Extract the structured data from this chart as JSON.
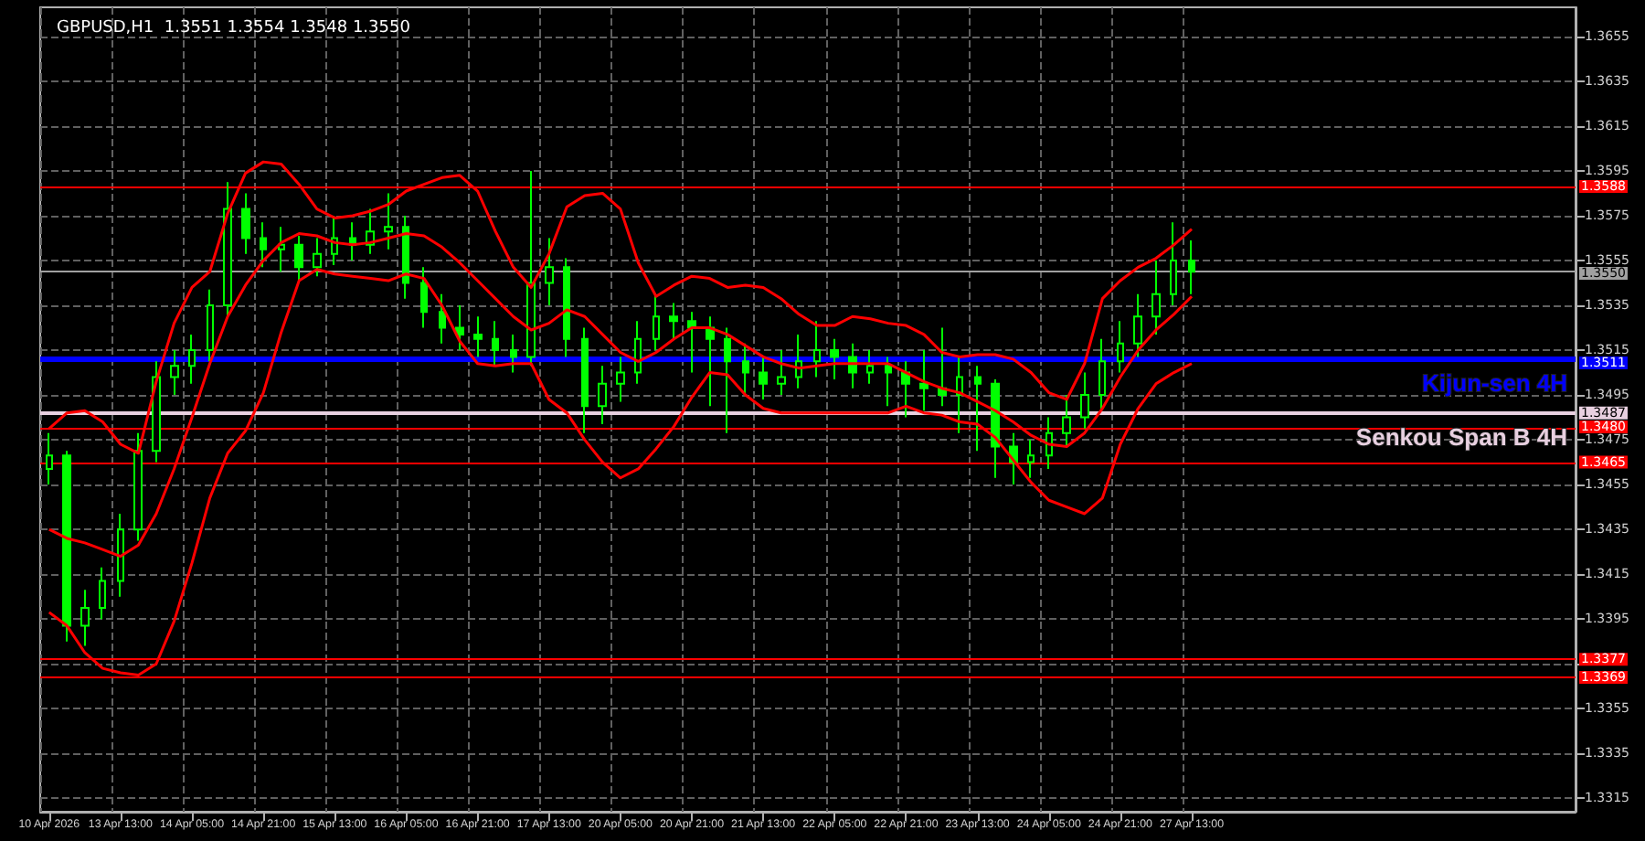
{
  "chart_data": {
    "type": "candlestick",
    "title": "GBPUSD,H1  1.3551 1.3554 1.3548 1.3550",
    "color": "#00ff00",
    "grid": true,
    "marker": "none",
    "line_style": "solid",
    "categories": [
      "10 Apr 2026",
      null,
      null,
      null,
      "13 Apr 13:00",
      null,
      null,
      null,
      "14 Apr 05:00",
      null,
      null,
      null,
      "14 Apr 21:00",
      null,
      null,
      null,
      "15 Apr 13:00",
      null,
      null,
      null,
      "16 Apr 05:00",
      null,
      null,
      null,
      "16 Apr 21:00",
      null,
      null,
      null,
      "17 Apr 13:00",
      null,
      null,
      null,
      "20 Apr 05:00",
      null,
      null,
      null,
      "20 Apr 21:00",
      null,
      null,
      null,
      "21 Apr 13:00",
      null,
      null,
      null,
      "22 Apr 05:00",
      null,
      null,
      null,
      "22 Apr 21:00",
      null,
      null,
      null,
      "23 Apr 13:00",
      null,
      null,
      null,
      "24 Apr 05:00",
      null,
      null,
      null,
      "24 Apr 21:00",
      null,
      null,
      null,
      "27 Apr 13:00",
      null,
      null,
      null,
      null,
      null,
      null,
      null,
      null,
      null,
      null,
      null,
      null,
      null,
      null,
      null,
      null,
      null,
      null,
      null,
      null,
      null
    ],
    "ohlc": [
      [
        1.3462,
        1.3478,
        1.3455,
        1.3468
      ],
      [
        1.3468,
        1.347,
        1.3385,
        1.3392
      ],
      [
        1.3392,
        1.3408,
        1.3383,
        1.34
      ],
      [
        1.34,
        1.3418,
        1.3395,
        1.3412
      ],
      [
        1.3412,
        1.3442,
        1.3405,
        1.3435
      ],
      [
        1.3435,
        1.3478,
        1.343,
        1.347
      ],
      [
        1.347,
        1.351,
        1.3465,
        1.3503
      ],
      [
        1.3503,
        1.3515,
        1.3495,
        1.3508
      ],
      [
        1.3508,
        1.3522,
        1.35,
        1.3515
      ],
      [
        1.3515,
        1.3542,
        1.351,
        1.3535
      ],
      [
        1.3535,
        1.359,
        1.353,
        1.3578
      ],
      [
        1.3578,
        1.3585,
        1.3558,
        1.3565
      ],
      [
        1.3565,
        1.3572,
        1.3552,
        1.356
      ],
      [
        1.356,
        1.357,
        1.355,
        1.3562
      ],
      [
        1.3562,
        1.3566,
        1.3545,
        1.3552
      ],
      [
        1.3552,
        1.3565,
        1.3548,
        1.3558
      ],
      [
        1.3558,
        1.3575,
        1.3553,
        1.3565
      ],
      [
        1.3565,
        1.3572,
        1.3555,
        1.3562
      ],
      [
        1.3562,
        1.3578,
        1.3558,
        1.3568
      ],
      [
        1.3568,
        1.3585,
        1.356,
        1.357
      ],
      [
        1.357,
        1.3575,
        1.3538,
        1.3545
      ],
      [
        1.3545,
        1.3552,
        1.3525,
        1.3532
      ],
      [
        1.3532,
        1.354,
        1.3518,
        1.3525
      ],
      [
        1.3525,
        1.3535,
        1.3515,
        1.3522
      ],
      [
        1.3522,
        1.353,
        1.3512,
        1.352
      ],
      [
        1.352,
        1.3528,
        1.3508,
        1.3515
      ],
      [
        1.3515,
        1.3522,
        1.3505,
        1.3512
      ],
      [
        1.3512,
        1.3595,
        1.3508,
        1.3545
      ],
      [
        1.3545,
        1.3565,
        1.3535,
        1.3552
      ],
      [
        1.3552,
        1.3556,
        1.3512,
        1.352
      ],
      [
        1.352,
        1.3525,
        1.3478,
        1.349
      ],
      [
        1.349,
        1.3508,
        1.3482,
        1.35
      ],
      [
        1.35,
        1.3512,
        1.3492,
        1.3505
      ],
      [
        1.3505,
        1.3528,
        1.35,
        1.352
      ],
      [
        1.352,
        1.354,
        1.3515,
        1.353
      ],
      [
        1.353,
        1.3536,
        1.352,
        1.3528
      ],
      [
        1.3528,
        1.3532,
        1.3505,
        1.3525
      ],
      [
        1.3525,
        1.353,
        1.349,
        1.352
      ],
      [
        1.352,
        1.3525,
        1.3478,
        1.351
      ],
      [
        1.351,
        1.3518,
        1.3495,
        1.3505
      ],
      [
        1.3505,
        1.3512,
        1.3493,
        1.35
      ],
      [
        1.35,
        1.3515,
        1.3495,
        1.3503
      ],
      [
        1.3503,
        1.3522,
        1.3498,
        1.351
      ],
      [
        1.351,
        1.3528,
        1.3503,
        1.3515
      ],
      [
        1.3515,
        1.352,
        1.3502,
        1.3512
      ],
      [
        1.3512,
        1.3518,
        1.3498,
        1.3505
      ],
      [
        1.3505,
        1.3515,
        1.35,
        1.3508
      ],
      [
        1.3508,
        1.3512,
        1.349,
        1.3505
      ],
      [
        1.3505,
        1.351,
        1.3485,
        1.35
      ],
      [
        1.35,
        1.3515,
        1.3488,
        1.3498
      ],
      [
        1.3498,
        1.3525,
        1.349,
        1.3495
      ],
      [
        1.3495,
        1.3512,
        1.3478,
        1.3503
      ],
      [
        1.3503,
        1.3508,
        1.347,
        1.35
      ],
      [
        1.35,
        1.3502,
        1.3458,
        1.3472
      ],
      [
        1.3472,
        1.3478,
        1.3455,
        1.3465
      ],
      [
        1.3465,
        1.3475,
        1.3458,
        1.3468
      ],
      [
        1.3468,
        1.3485,
        1.3462,
        1.3478
      ],
      [
        1.3478,
        1.3495,
        1.3472,
        1.3485
      ],
      [
        1.3485,
        1.3505,
        1.348,
        1.3495
      ],
      [
        1.3495,
        1.352,
        1.3488,
        1.351
      ],
      [
        1.351,
        1.3528,
        1.3505,
        1.3518
      ],
      [
        1.3518,
        1.354,
        1.3512,
        1.353
      ],
      [
        1.353,
        1.3555,
        1.3522,
        1.354
      ],
      [
        1.354,
        1.3572,
        1.3535,
        1.3555
      ],
      [
        1.3555,
        1.3564,
        1.354,
        1.355
      ],
      null,
      null,
      null,
      null,
      null,
      null,
      null,
      null,
      null,
      null,
      null,
      null,
      null,
      null,
      null,
      null,
      null,
      null,
      null,
      null,
      null
    ],
    "series": [
      {
        "type": "line",
        "color": "#ff0000",
        "values": [
          1.348,
          1.3487,
          1.3488,
          1.3483,
          1.3473,
          1.3469,
          1.3501,
          1.3527,
          1.3543,
          1.355,
          1.3576,
          1.3594,
          1.3599,
          1.3598,
          1.3589,
          1.3578,
          1.3574,
          1.3575,
          1.3577,
          1.358,
          1.3586,
          1.3589,
          1.3592,
          1.3593,
          1.3586,
          1.3568,
          1.3552,
          1.3543,
          1.3558,
          1.3579,
          1.3584,
          1.3585,
          1.3578,
          1.3554,
          1.3539,
          1.3544,
          1.3548,
          1.3547,
          1.3543,
          1.3544,
          1.3543,
          1.3538,
          1.3531,
          1.3526,
          1.3526,
          1.353,
          1.3529,
          1.3527,
          1.3526,
          1.3522,
          1.3514,
          1.3512,
          1.3513,
          1.3513,
          1.3511,
          1.3505,
          1.3496,
          1.3493,
          1.3509,
          1.3538,
          1.3546,
          1.3552,
          1.3556,
          1.3562,
          1.3569,
          null,
          null,
          null,
          null,
          null,
          null,
          null,
          null,
          null,
          null,
          null,
          null,
          null,
          null,
          null,
          null,
          null,
          null,
          null,
          null,
          null
        ]
      },
      {
        "type": "line",
        "color": "#ff0000",
        "values": [
          1.3435,
          1.3431,
          1.3429,
          1.3426,
          1.3423,
          1.3428,
          1.3442,
          1.3462,
          1.3485,
          1.3509,
          1.353,
          1.3544,
          1.3555,
          1.3563,
          1.3567,
          1.3566,
          1.3563,
          1.3562,
          1.3563,
          1.3565,
          1.3567,
          1.3566,
          1.3561,
          1.3554,
          1.3546,
          1.3538,
          1.353,
          1.3524,
          1.3527,
          1.3533,
          1.353,
          1.3522,
          1.3514,
          1.351,
          1.3514,
          1.352,
          1.3525,
          1.3525,
          1.3522,
          1.3517,
          1.3512,
          1.3509,
          1.3507,
          1.3508,
          1.3509,
          1.3509,
          1.3509,
          1.3509,
          1.3505,
          1.3501,
          1.3498,
          1.3496,
          1.3492,
          1.3488,
          1.3483,
          1.3477,
          1.3473,
          1.3472,
          1.3478,
          1.3489,
          1.3503,
          1.3515,
          1.3524,
          1.3531,
          1.3539,
          null,
          null,
          null,
          null,
          null,
          null,
          null,
          null,
          null,
          null,
          null,
          null,
          null,
          null,
          null,
          null,
          null,
          null,
          null,
          null,
          null
        ]
      },
      {
        "type": "line",
        "color": "#ff0000",
        "values": [
          1.3398,
          1.3392,
          1.338,
          1.3373,
          1.3371,
          1.337,
          1.3375,
          1.3394,
          1.342,
          1.3449,
          1.3469,
          1.3479,
          1.3496,
          1.3523,
          1.3546,
          1.3551,
          1.3549,
          1.3548,
          1.3547,
          1.3546,
          1.3549,
          1.3547,
          1.3535,
          1.3519,
          1.3509,
          1.3508,
          1.3509,
          1.3509,
          1.3493,
          1.3487,
          1.3475,
          1.3465,
          1.3458,
          1.3462,
          1.3471,
          1.3481,
          1.3494,
          1.3505,
          1.3504,
          1.3495,
          1.3489,
          1.3487,
          1.3487,
          1.3487,
          1.3487,
          1.3487,
          1.3487,
          1.3487,
          1.349,
          1.3487,
          1.3486,
          1.3483,
          1.3482,
          1.3476,
          1.3466,
          1.3456,
          1.3448,
          1.3445,
          1.3442,
          1.3449,
          1.3473,
          1.3489,
          1.35,
          1.3505,
          1.3509,
          null,
          null,
          null,
          null,
          null,
          null,
          null,
          null,
          null,
          null,
          null,
          null,
          null,
          null,
          null,
          null,
          null,
          null,
          null,
          null,
          null
        ]
      }
    ],
    "ylim": [
      1.3309,
      1.3668
    ],
    "yticks": [
      1.3315,
      1.3335,
      1.3355,
      {
        "value": 1.3375,
        "label": null
      },
      1.3395,
      1.3415,
      1.3435,
      1.3455,
      1.3475,
      1.3495,
      1.3515,
      1.3535,
      1.3555,
      1.3575,
      1.3595,
      1.3615,
      1.3635,
      1.3655
    ],
    "ref_lines": [
      {
        "axis": "y",
        "value": 1.3588,
        "color": "#ff0000",
        "label": "1.3588"
      },
      {
        "axis": "y",
        "value": 1.355,
        "color": "#a0a0a0",
        "label": "1.3550"
      },
      {
        "axis": "y",
        "value": 1.3511,
        "color": "#0000ff",
        "label": "1.3511"
      },
      {
        "axis": "y",
        "value": 1.3487,
        "color": "#e8d0e0",
        "label": "1.3487"
      },
      {
        "axis": "y",
        "value": 1.348,
        "color": "#ff0000",
        "label": "1.3480"
      },
      {
        "axis": "y",
        "value": 1.3465,
        "color": "#ff0000",
        "label": "1.3465"
      },
      {
        "axis": "y",
        "value": 1.3377,
        "color": "#ff0000",
        "label": "1.3377"
      },
      {
        "axis": "y",
        "value": 1.3369,
        "color": "#ff0000",
        "label": "1.3369"
      }
    ],
    "annotations": [
      {
        "text": "Kijun-sen 4H",
        "y": 1.3511
      },
      {
        "text": "Senkou Span B 4H",
        "y": 1.3487
      }
    ]
  }
}
